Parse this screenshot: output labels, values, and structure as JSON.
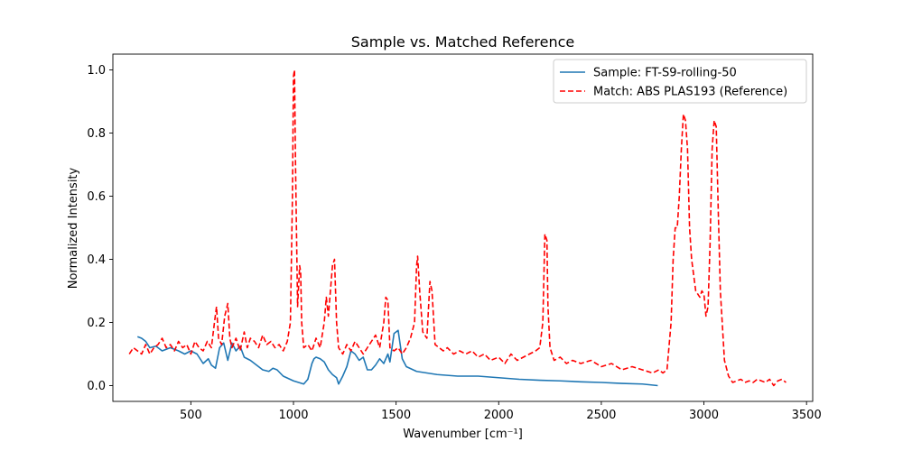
{
  "chart_data": {
    "type": "line",
    "title": "Sample vs. Matched Reference",
    "xlabel": "Wavenumber [cm⁻¹]",
    "ylabel": "Normalized Intensity",
    "xlim": [
      120,
      3530
    ],
    "ylim": [
      -0.05,
      1.05
    ],
    "xticks": [
      500,
      1000,
      1500,
      2000,
      2500,
      3000,
      3500
    ],
    "yticks": [
      0.0,
      0.2,
      0.4,
      0.6,
      0.8,
      1.0
    ],
    "xtick_labels": [
      "500",
      "1000",
      "1500",
      "2000",
      "2500",
      "3000",
      "3500"
    ],
    "ytick_labels": [
      "0.0",
      "0.2",
      "0.4",
      "0.6",
      "0.8",
      "1.0"
    ],
    "grid": false,
    "legend_position": "upper right",
    "series": [
      {
        "name": "Sample: FT-S9-rolling-50",
        "color": "#1f77b4",
        "style": "solid",
        "x": [
          240,
          260,
          280,
          300,
          330,
          360,
          400,
          440,
          470,
          500,
          530,
          560,
          585,
          600,
          620,
          640,
          660,
          680,
          700,
          720,
          740,
          760,
          790,
          820,
          850,
          880,
          900,
          920,
          950,
          1000,
          1050,
          1070,
          1090,
          1100,
          1110,
          1130,
          1150,
          1170,
          1190,
          1210,
          1220,
          1240,
          1260,
          1280,
          1300,
          1320,
          1340,
          1360,
          1380,
          1400,
          1420,
          1440,
          1460,
          1470,
          1490,
          1510,
          1530,
          1550,
          1600,
          1650,
          1700,
          1800,
          1900,
          2000,
          2100,
          2200,
          2300,
          2400,
          2500,
          2600,
          2700,
          2775
        ],
        "y": [
          0.155,
          0.15,
          0.14,
          0.12,
          0.125,
          0.11,
          0.12,
          0.11,
          0.1,
          0.11,
          0.1,
          0.07,
          0.085,
          0.065,
          0.055,
          0.12,
          0.135,
          0.08,
          0.135,
          0.11,
          0.125,
          0.09,
          0.08,
          0.065,
          0.05,
          0.045,
          0.055,
          0.05,
          0.03,
          0.015,
          0.005,
          0.02,
          0.07,
          0.085,
          0.09,
          0.085,
          0.075,
          0.05,
          0.035,
          0.025,
          0.005,
          0.03,
          0.06,
          0.11,
          0.1,
          0.08,
          0.09,
          0.05,
          0.05,
          0.065,
          0.085,
          0.07,
          0.1,
          0.075,
          0.165,
          0.175,
          0.085,
          0.06,
          0.045,
          0.04,
          0.035,
          0.03,
          0.03,
          0.025,
          0.02,
          0.017,
          0.015,
          0.012,
          0.01,
          0.007,
          0.005,
          0.0
        ]
      },
      {
        "name": "Match: ABS PLAS193 (Reference)",
        "color": "#ff0000",
        "style": "dashed",
        "x": [
          200,
          220,
          240,
          260,
          280,
          300,
          320,
          340,
          360,
          380,
          400,
          420,
          440,
          460,
          480,
          500,
          520,
          540,
          560,
          580,
          600,
          615,
          625,
          635,
          650,
          665,
          680,
          690,
          700,
          720,
          740,
          760,
          775,
          790,
          810,
          830,
          850,
          870,
          890,
          910,
          930,
          950,
          970,
          985,
          995,
          1000,
          1005,
          1010,
          1020,
          1030,
          1035,
          1040,
          1050,
          1070,
          1090,
          1110,
          1130,
          1150,
          1160,
          1170,
          1180,
          1190,
          1200,
          1210,
          1220,
          1240,
          1260,
          1280,
          1300,
          1320,
          1340,
          1360,
          1380,
          1400,
          1420,
          1440,
          1450,
          1460,
          1470,
          1490,
          1510,
          1530,
          1550,
          1570,
          1590,
          1600,
          1605,
          1615,
          1630,
          1650,
          1665,
          1675,
          1690,
          1710,
          1730,
          1750,
          1780,
          1810,
          1840,
          1870,
          1900,
          1930,
          1960,
          2000,
          2030,
          2060,
          2090,
          2120,
          2150,
          2180,
          2200,
          2215,
          2225,
          2235,
          2240,
          2250,
          2270,
          2300,
          2330,
          2360,
          2400,
          2450,
          2500,
          2550,
          2600,
          2650,
          2700,
          2750,
          2780,
          2800,
          2820,
          2840,
          2850,
          2860,
          2870,
          2880,
          2890,
          2900,
          2910,
          2920,
          2930,
          2940,
          2960,
          2980,
          2990,
          3000,
          3010,
          3020,
          3030,
          3040,
          3050,
          3060,
          3070,
          3080,
          3100,
          3120,
          3140,
          3160,
          3180,
          3200,
          3220,
          3240,
          3260,
          3280,
          3300,
          3320,
          3340,
          3360,
          3380,
          3400
        ],
        "y": [
          0.1,
          0.12,
          0.11,
          0.1,
          0.13,
          0.1,
          0.12,
          0.13,
          0.15,
          0.12,
          0.13,
          0.11,
          0.14,
          0.12,
          0.13,
          0.1,
          0.14,
          0.12,
          0.11,
          0.14,
          0.12,
          0.2,
          0.25,
          0.15,
          0.13,
          0.22,
          0.26,
          0.15,
          0.12,
          0.15,
          0.11,
          0.17,
          0.12,
          0.15,
          0.14,
          0.12,
          0.16,
          0.13,
          0.14,
          0.12,
          0.13,
          0.11,
          0.14,
          0.2,
          0.6,
          0.98,
          1.0,
          0.7,
          0.25,
          0.38,
          0.36,
          0.2,
          0.12,
          0.13,
          0.11,
          0.15,
          0.12,
          0.2,
          0.28,
          0.22,
          0.3,
          0.38,
          0.4,
          0.2,
          0.12,
          0.1,
          0.13,
          0.11,
          0.14,
          0.12,
          0.1,
          0.12,
          0.14,
          0.16,
          0.12,
          0.2,
          0.28,
          0.27,
          0.12,
          0.11,
          0.12,
          0.1,
          0.12,
          0.15,
          0.2,
          0.38,
          0.41,
          0.3,
          0.17,
          0.15,
          0.33,
          0.3,
          0.13,
          0.12,
          0.11,
          0.12,
          0.1,
          0.11,
          0.1,
          0.11,
          0.09,
          0.1,
          0.08,
          0.09,
          0.07,
          0.1,
          0.08,
          0.09,
          0.1,
          0.11,
          0.12,
          0.2,
          0.48,
          0.46,
          0.25,
          0.12,
          0.08,
          0.09,
          0.07,
          0.08,
          0.07,
          0.08,
          0.06,
          0.07,
          0.05,
          0.06,
          0.05,
          0.04,
          0.05,
          0.04,
          0.05,
          0.2,
          0.4,
          0.5,
          0.5,
          0.6,
          0.75,
          0.86,
          0.84,
          0.75,
          0.5,
          0.4,
          0.3,
          0.28,
          0.3,
          0.29,
          0.22,
          0.25,
          0.45,
          0.75,
          0.84,
          0.82,
          0.55,
          0.3,
          0.08,
          0.03,
          0.01,
          0.015,
          0.02,
          0.01,
          0.015,
          0.01,
          0.02,
          0.015,
          0.01,
          0.02,
          0.0,
          0.015,
          0.02,
          0.01
        ]
      }
    ]
  }
}
